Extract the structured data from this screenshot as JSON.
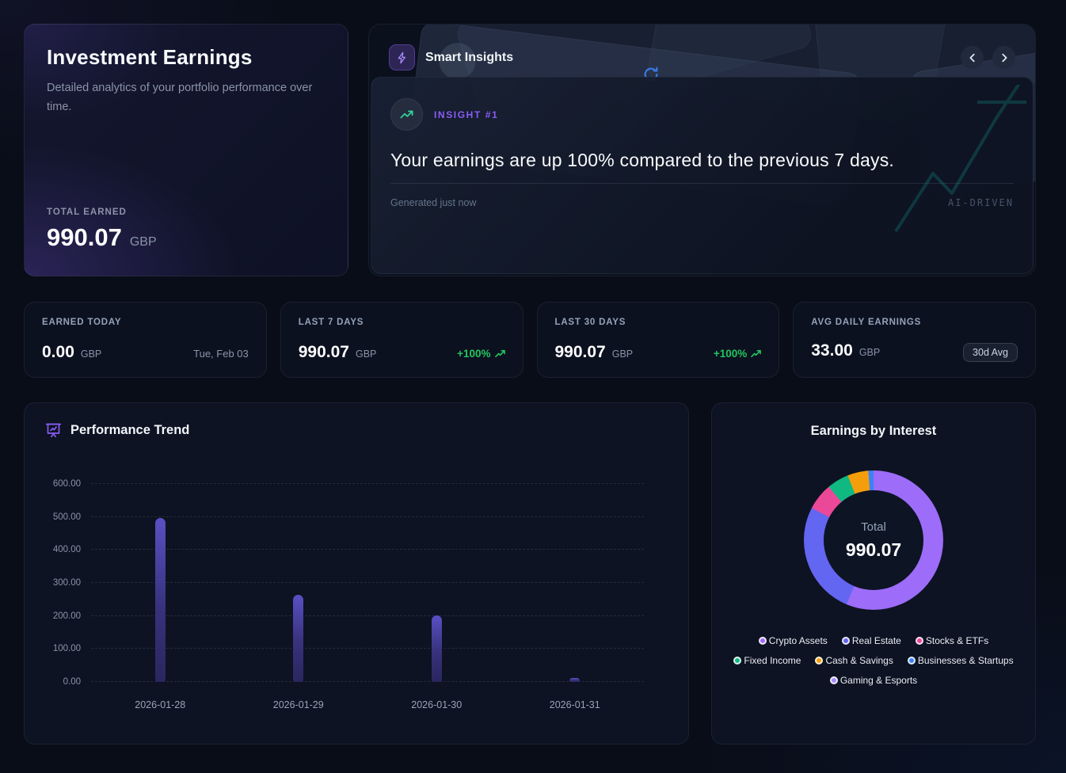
{
  "hero": {
    "title": "Investment Earnings",
    "subtitle": "Detailed analytics of your portfolio performance over time.",
    "total_label": "TOTAL EARNED",
    "total_value": "990.07",
    "currency": "GBP"
  },
  "insights": {
    "title": "Smart Insights",
    "badge": "INSIGHT #1",
    "headline": "Your earnings are up 100% compared to the previous 7 days.",
    "generated": "Generated just now",
    "watermark": "AI-DRIVEN"
  },
  "stats": [
    {
      "label": "EARNED TODAY",
      "value": "0.00",
      "unit": "GBP",
      "extra": "Tue, Feb 03"
    },
    {
      "label": "LAST 7 DAYS",
      "value": "990.07",
      "unit": "GBP",
      "extra": "+100%"
    },
    {
      "label": "LAST 30 DAYS",
      "value": "990.07",
      "unit": "GBP",
      "extra": "+100%"
    },
    {
      "label": "AVG DAILY EARNINGS",
      "value": "33.00",
      "unit": "GBP",
      "extra": "30d Avg"
    }
  ],
  "colors": {
    "accent_purple": "#8b5cf6",
    "positive_green": "#22c55e",
    "bar_gradient_top": "#5a50c4",
    "bar_gradient_bottom": "#2a265f",
    "decoration_teal": "#14b8a6"
  },
  "chart_data": [
    {
      "type": "bar",
      "title": "Performance Trend",
      "categories": [
        "2026-01-28",
        "2026-01-29",
        "2026-01-30",
        "2026-01-31"
      ],
      "values": [
        497,
        264,
        201,
        12
      ],
      "ylabel": "",
      "xlabel": "",
      "ylim": [
        0,
        600
      ],
      "ytick_step": 100,
      "ytick_format": "0.00",
      "grid": "horizontal-dashed",
      "legend_position": "none"
    },
    {
      "type": "pie",
      "subtype": "donut",
      "title": "Earnings by Interest",
      "center_label": "Total",
      "center_value": "990.07",
      "legend_position": "bottom",
      "segments": [
        {
          "label": "Crypto Assets",
          "value": 558,
          "color": "#9d6cf9"
        },
        {
          "label": "Real Estate",
          "value": 260,
          "color": "#6366f1"
        },
        {
          "label": "Stocks & ETFs",
          "value": 62,
          "color": "#ec4899"
        },
        {
          "label": "Fixed Income",
          "value": 50,
          "color": "#10b981"
        },
        {
          "label": "Cash & Savings",
          "value": 48,
          "color": "#f59e0b"
        },
        {
          "label": "Businesses & Startups",
          "value": 12,
          "color": "#3b82f6"
        },
        {
          "label": "Gaming & Esports",
          "value": 0,
          "color": "#a78bfa"
        }
      ]
    }
  ]
}
